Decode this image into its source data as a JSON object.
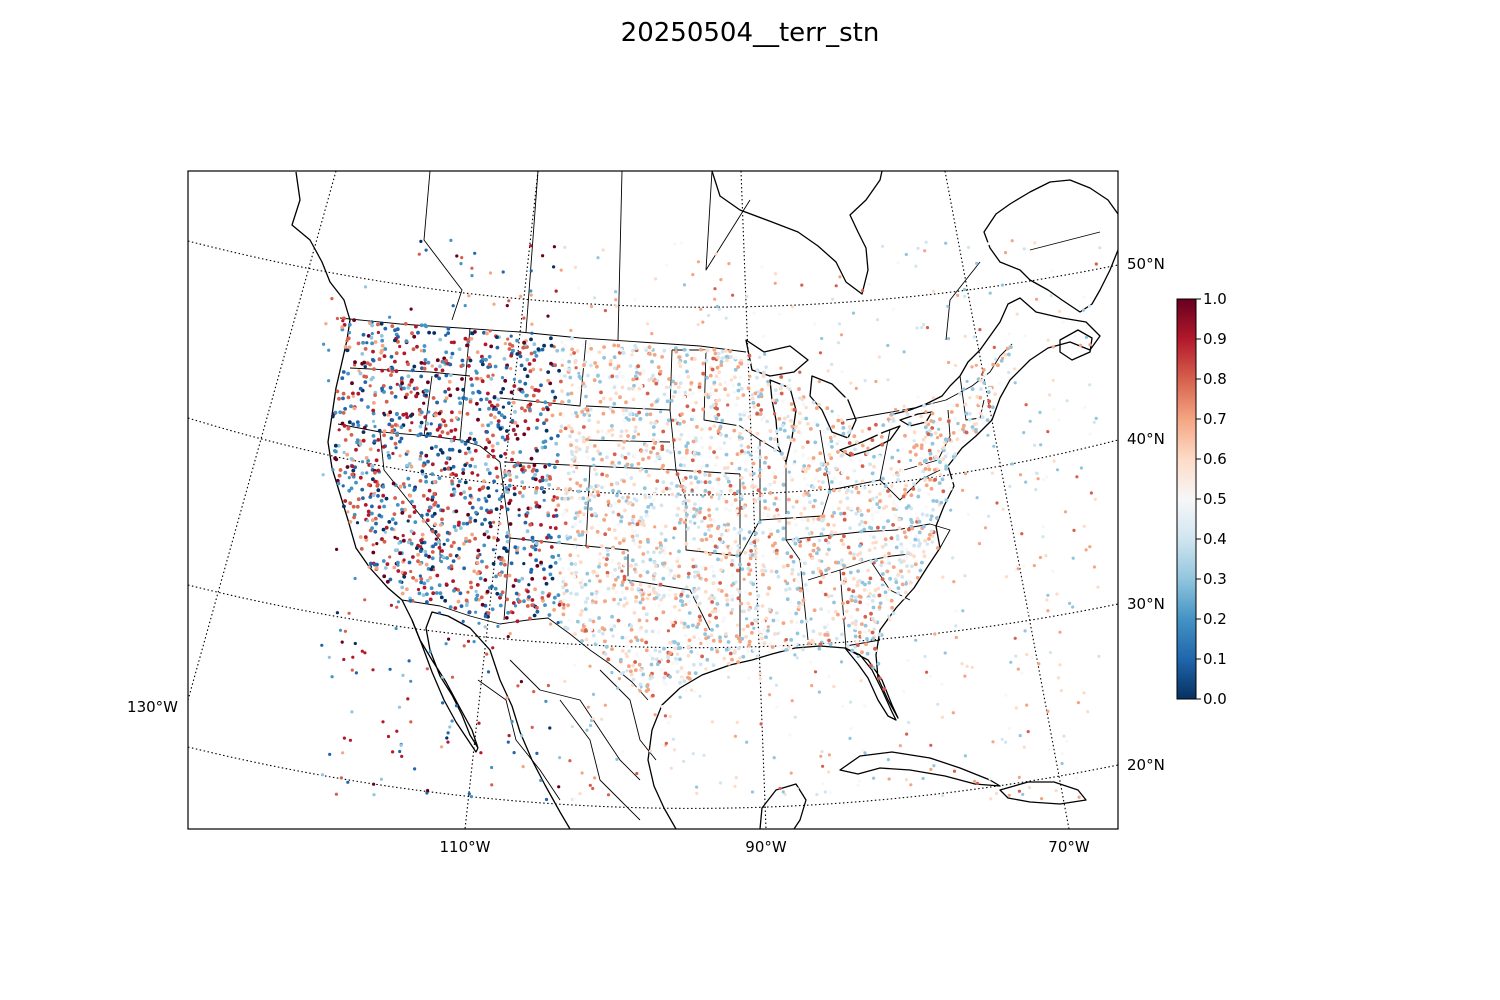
{
  "title": "20250504__terr_stn",
  "map": {
    "projection": "lambert-conformal",
    "longitude_labels": [
      "130°W",
      "110°W",
      "90°W",
      "70°W"
    ],
    "latitude_labels": [
      "50°N",
      "40°N",
      "30°N",
      "20°N"
    ],
    "graticule": "dotted",
    "features": [
      "coastlines",
      "country-borders",
      "state-borders"
    ]
  },
  "colorbar": {
    "colormap": "RdBu_r",
    "min": 0.0,
    "max": 1.0,
    "tick_labels": [
      "0.0",
      "0.1",
      "0.2",
      "0.3",
      "0.4",
      "0.5",
      "0.6",
      "0.7",
      "0.8",
      "0.9",
      "1.0"
    ],
    "colors": [
      "#053061",
      "#2166ac",
      "#4393c3",
      "#92c5de",
      "#d1e5f0",
      "#f7f7f7",
      "#fddbc7",
      "#f4a582",
      "#d6604d",
      "#b2182b",
      "#67001f"
    ]
  },
  "stations": {
    "description_count": 4200,
    "marker": "small-dot"
  }
}
